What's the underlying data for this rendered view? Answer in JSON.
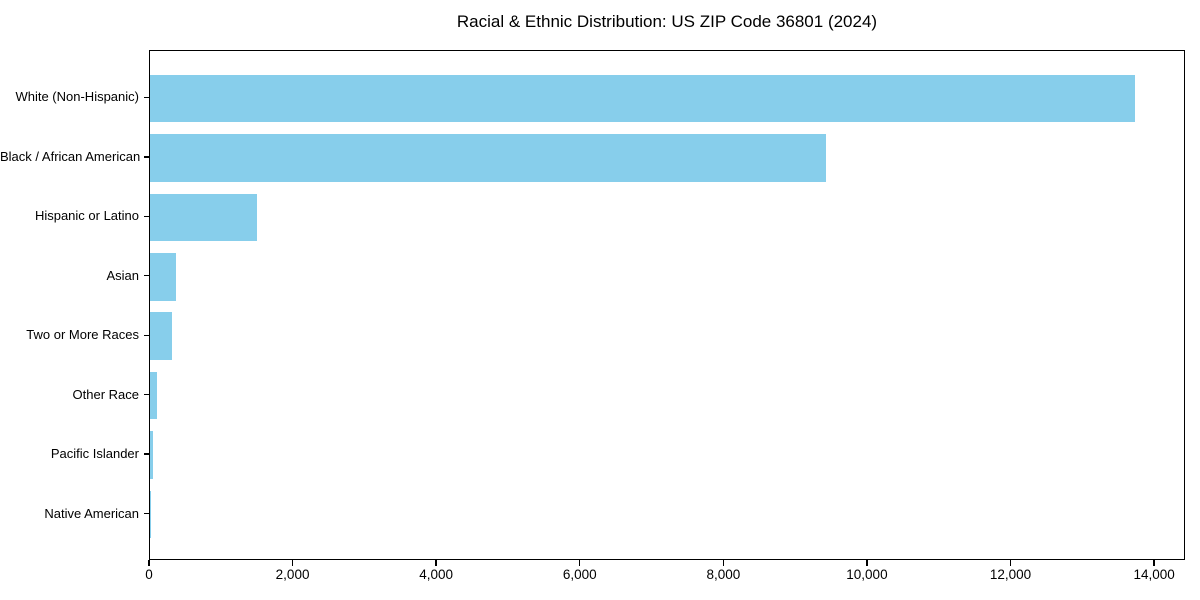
{
  "chart_data": {
    "type": "bar",
    "orientation": "horizontal",
    "title": "Racial & Ethnic Distribution: US ZIP Code 36801 (2024)",
    "categories": [
      "White (Non-Hispanic)",
      "Black / African American",
      "Hispanic or Latino",
      "Asian",
      "Two or More Races",
      "Other Race",
      "Pacific Islander",
      "Native American"
    ],
    "values": [
      13750,
      9430,
      1500,
      365,
      310,
      100,
      40,
      10
    ],
    "xlabel": "",
    "ylabel": "",
    "xlim": [
      0,
      14430
    ],
    "xtick_values": [
      0,
      2000,
      4000,
      6000,
      8000,
      10000,
      12000,
      14000
    ],
    "xtick_labels": [
      "0",
      "2,000",
      "4,000",
      "6,000",
      "8,000",
      "10,000",
      "12,000",
      "14,000"
    ],
    "bar_color": "#87CEEB",
    "frame_color": "#000000",
    "background_color": "#ffffff",
    "grid": false,
    "legend": null
  }
}
